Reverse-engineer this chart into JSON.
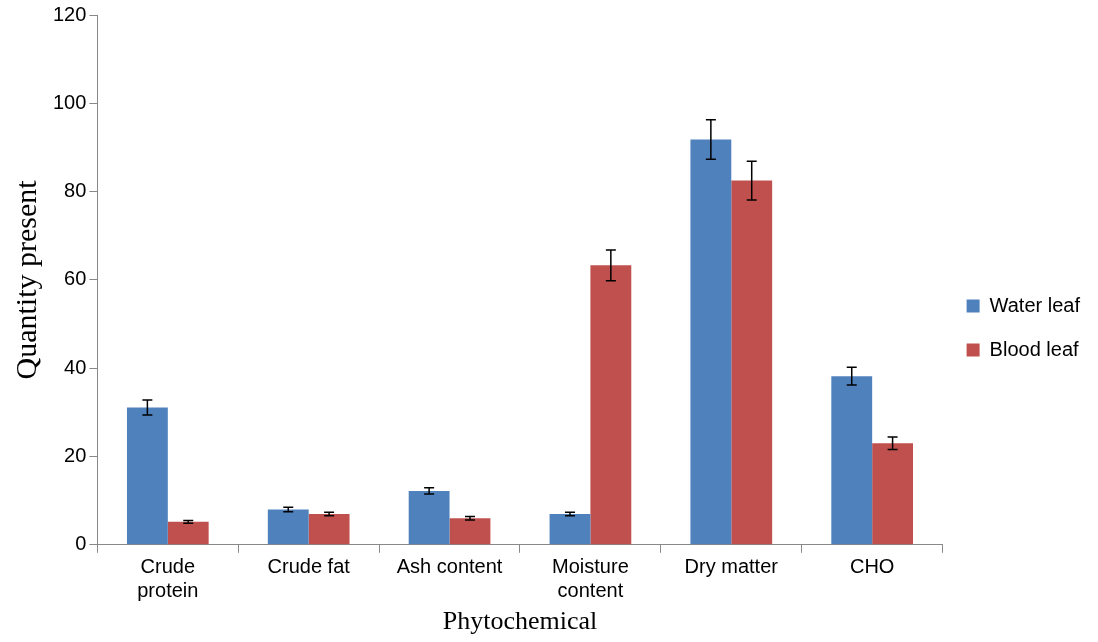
{
  "chart_data": {
    "type": "bar",
    "xlabel": "Phytochemical",
    "ylabel": "Quantity present",
    "categories": [
      "Crude protein",
      "Crude fat",
      "Ash content",
      "Moisture content",
      "Dry matter",
      "CHO"
    ],
    "series": [
      {
        "name": "Water leaf",
        "color": "#4f81bd",
        "values": [
          31.1,
          8,
          12.2,
          7,
          91.8,
          38.2
        ],
        "errors": [
          1.7,
          0.5,
          0.7,
          0.4,
          4.5,
          2
        ]
      },
      {
        "name": "Blood leaf",
        "color": "#c0504d",
        "values": [
          5.2,
          7,
          6,
          63.3,
          82.5,
          23
        ],
        "errors": [
          0.3,
          0.4,
          0.4,
          3.5,
          4.4,
          1.4
        ]
      }
    ],
    "ylim": [
      0,
      120
    ],
    "yticks": [
      0,
      20,
      40,
      60,
      80,
      100,
      120
    ],
    "grid": false,
    "legend": "right"
  }
}
